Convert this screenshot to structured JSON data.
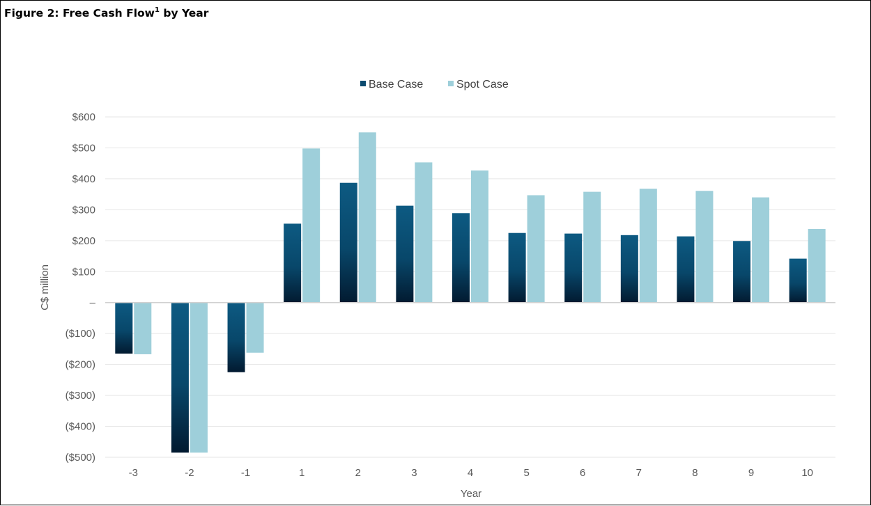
{
  "figure": {
    "title_main": "Figure 2: Free Cash Flow",
    "title_sup": "1",
    "title_tail": " by Year"
  },
  "chart_data": {
    "type": "bar",
    "title": "Figure 2: Free Cash Flow1 by Year",
    "xlabel": "Year",
    "ylabel": "C$ million",
    "categories": [
      "-3",
      "-2",
      "-1",
      "1",
      "2",
      "3",
      "4",
      "5",
      "6",
      "7",
      "8",
      "9",
      "10"
    ],
    "series": [
      {
        "name": "Base Case",
        "color": "#0b4a6f",
        "values": [
          -165,
          -485,
          -225,
          255,
          387,
          313,
          289,
          225,
          223,
          218,
          214,
          199,
          142
        ]
      },
      {
        "name": "Spot Case",
        "color": "#9ecfda",
        "values": [
          -167,
          -485,
          -162,
          498,
          550,
          453,
          427,
          347,
          358,
          368,
          361,
          340,
          238
        ]
      }
    ],
    "ylim": [
      -500,
      600
    ],
    "yticks": [
      600,
      500,
      400,
      300,
      200,
      100,
      0,
      -100,
      -200,
      -300,
      -400,
      -500
    ],
    "ytick_labels": [
      "$600",
      "$500",
      "$400",
      "$300",
      "$200",
      "$100",
      "–",
      "($100)",
      "($200)",
      "($300)",
      "($400)",
      "($500)"
    ],
    "legend_position": "top-center",
    "grid": true,
    "colors": {
      "grid": "#e6e6e6",
      "zero_line": "#d0d0d0",
      "axis_text": "#595959"
    }
  }
}
